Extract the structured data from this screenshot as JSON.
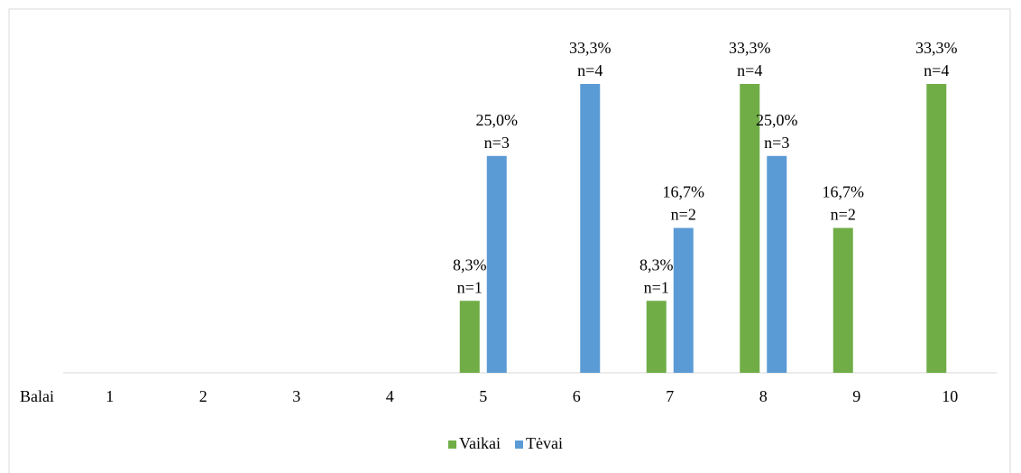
{
  "chart_data": {
    "type": "bar",
    "x_label": "Balai",
    "categories": [
      "1",
      "2",
      "3",
      "4",
      "5",
      "6",
      "7",
      "8",
      "9",
      "10"
    ],
    "series": [
      {
        "name": "Vaikai",
        "color": "#70ad47",
        "values": [
          null,
          null,
          null,
          null,
          8.3,
          null,
          8.3,
          33.3,
          16.7,
          33.3
        ],
        "value_labels": [
          null,
          null,
          null,
          null,
          "8,3%",
          null,
          "8,3%",
          "33,3%",
          "16,7%",
          "33,3%"
        ],
        "n_labels": [
          null,
          null,
          null,
          null,
          "n=1",
          null,
          "n=1",
          "n=4",
          "n=2",
          "n=4"
        ]
      },
      {
        "name": "Tėvai",
        "color": "#5b9bd5",
        "values": [
          null,
          null,
          null,
          null,
          25.0,
          33.3,
          16.7,
          25.0,
          null,
          null
        ],
        "value_labels": [
          null,
          null,
          null,
          null,
          "25,0%",
          "33,3%",
          "16,7%",
          "25,0%",
          null,
          null
        ],
        "n_labels": [
          null,
          null,
          null,
          null,
          "n=3",
          "n=4",
          "n=2",
          "n=3",
          null,
          null
        ]
      }
    ],
    "legend": "bottom"
  }
}
